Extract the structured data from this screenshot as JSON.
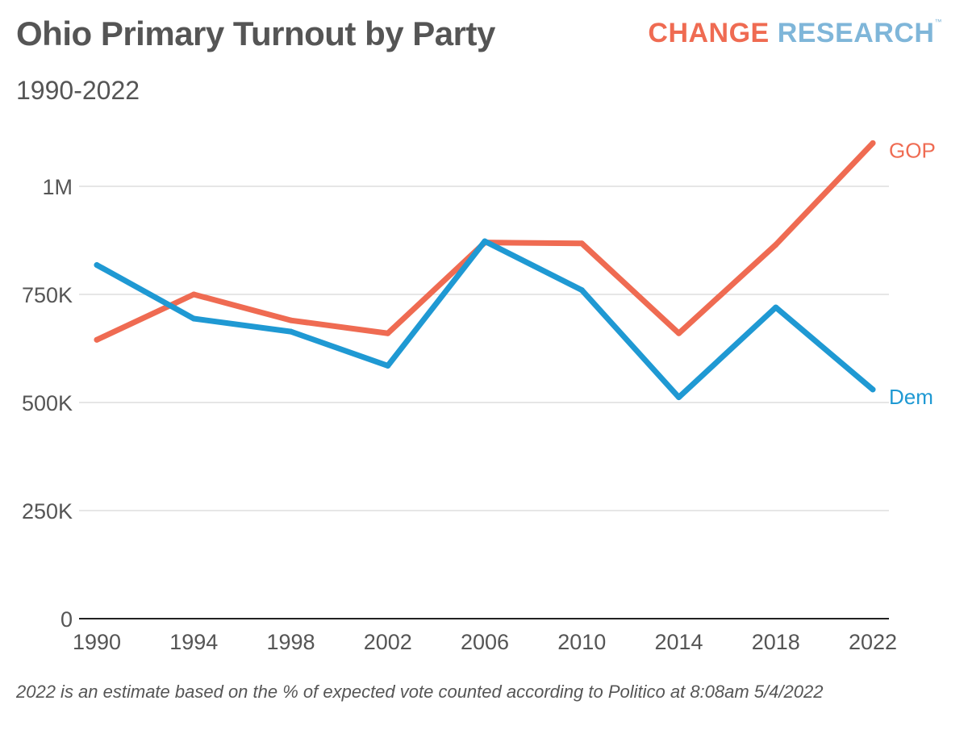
{
  "chart_data": {
    "type": "line",
    "title": "Ohio Primary Turnout by Party",
    "subtitle": "1990-2022",
    "brand": {
      "word1": "CHANGE",
      "word2": "RESEARCH",
      "tm": "™"
    },
    "xlabel": "",
    "ylabel": "",
    "x": [
      "1990",
      "1994",
      "1998",
      "2002",
      "2006",
      "2010",
      "2014",
      "2018",
      "2022"
    ],
    "ylim": [
      0,
      1000000
    ],
    "yticks": [
      {
        "value": 0,
        "label": "0"
      },
      {
        "value": 250000,
        "label": "250K"
      },
      {
        "value": 500000,
        "label": "500K"
      },
      {
        "value": 750000,
        "label": "750K"
      },
      {
        "value": 1000000,
        "label": "1M"
      }
    ],
    "grid": true,
    "series": [
      {
        "name": "GOP",
        "color": "#ef6b52",
        "values": [
          645000,
          750000,
          690000,
          660000,
          870000,
          868000,
          660000,
          865000,
          1100000
        ]
      },
      {
        "name": "Dem",
        "color": "#1f99d3",
        "values": [
          818000,
          694000,
          664000,
          585000,
          873000,
          760000,
          512000,
          720000,
          530000
        ]
      }
    ],
    "footnote": "2022 is an estimate based on the % of expected vote counted according to Politico at 8:08am 5/4/2022"
  }
}
